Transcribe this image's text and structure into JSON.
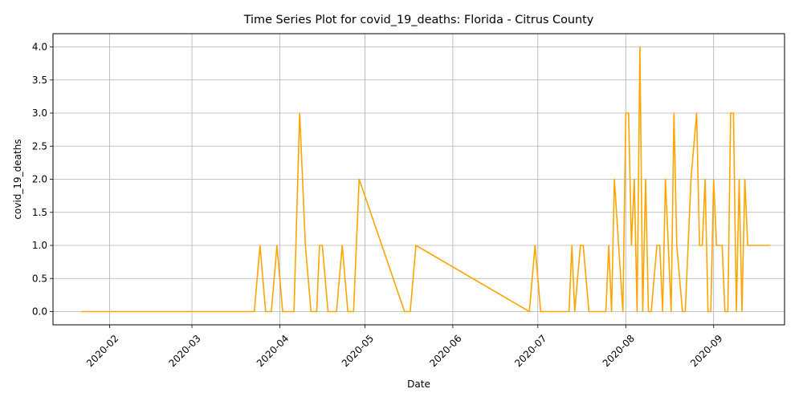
{
  "chart_data": {
    "type": "line",
    "title": "Time Series Plot for covid_19_deaths: Florida - Citrus County",
    "xlabel": "Date",
    "ylabel": "covid_19_deaths",
    "xlim": [
      "2020-01-12",
      "2020-09-26"
    ],
    "ylim": [
      -0.2,
      4.2
    ],
    "grid": true,
    "line_color": "#ffa500",
    "x_ticks": [
      "2020-02",
      "2020-03",
      "2020-04",
      "2020-05",
      "2020-06",
      "2020-07",
      "2020-08",
      "2020-09"
    ],
    "y_ticks": [
      "0.0",
      "0.5",
      "1.0",
      "1.5",
      "2.0",
      "2.5",
      "3.0",
      "3.5",
      "4.0"
    ],
    "series": [
      {
        "x": [
          "2020-01-22",
          "2020-03-23",
          "2020-03-25",
          "2020-03-27",
          "2020-03-29",
          "2020-03-31",
          "2020-04-02",
          "2020-04-06",
          "2020-04-08",
          "2020-04-10",
          "2020-04-12",
          "2020-04-14",
          "2020-04-15",
          "2020-04-16",
          "2020-04-18",
          "2020-04-21",
          "2020-04-23",
          "2020-04-25",
          "2020-04-27",
          "2020-04-29",
          "2020-05-15",
          "2020-05-17",
          "2020-05-19",
          "2020-06-28",
          "2020-06-30",
          "2020-07-02",
          "2020-07-10",
          "2020-07-12",
          "2020-07-13",
          "2020-07-14",
          "2020-07-16",
          "2020-07-17",
          "2020-07-19",
          "2020-07-24",
          "2020-07-25",
          "2020-07-26",
          "2020-07-27",
          "2020-07-28",
          "2020-07-31",
          "2020-08-01",
          "2020-08-02",
          "2020-08-03",
          "2020-08-04",
          "2020-08-05",
          "2020-08-06",
          "2020-08-07",
          "2020-08-08",
          "2020-08-09",
          "2020-08-10",
          "2020-08-12",
          "2020-08-13",
          "2020-08-14",
          "2020-08-15",
          "2020-08-17",
          "2020-08-18",
          "2020-08-19",
          "2020-08-21",
          "2020-08-22",
          "2020-08-24",
          "2020-08-26",
          "2020-08-27",
          "2020-08-28",
          "2020-08-29",
          "2020-08-30",
          "2020-08-31",
          "2020-09-01",
          "2020-09-02",
          "2020-09-03",
          "2020-09-04",
          "2020-09-05",
          "2020-09-06",
          "2020-09-07",
          "2020-09-08",
          "2020-09-09",
          "2020-09-10",
          "2020-09-11",
          "2020-09-12",
          "2020-09-13",
          "2020-09-14",
          "2020-09-15",
          "2020-09-16",
          "2020-09-17",
          "2020-09-18",
          "2020-09-19",
          "2020-09-20",
          "2020-09-21"
        ],
        "y": [
          0,
          0,
          1,
          0,
          0,
          1,
          0,
          0,
          3,
          1,
          0,
          0,
          1,
          1,
          0,
          0,
          1,
          0,
          0,
          2,
          0,
          0,
          1,
          0,
          1,
          0,
          0,
          0,
          1,
          0,
          1,
          1,
          0,
          0,
          0,
          1,
          0,
          2,
          0,
          3,
          3,
          1,
          2,
          0,
          4,
          0,
          2,
          0,
          0,
          1,
          1,
          0,
          2,
          0,
          3,
          1,
          0,
          0,
          2,
          3,
          1,
          1,
          2,
          0,
          0,
          2,
          1,
          1,
          1,
          0,
          0,
          3,
          3,
          0,
          2,
          0,
          2,
          1,
          1,
          1,
          1,
          1,
          1,
          1,
          1,
          1
        ]
      }
    ]
  }
}
